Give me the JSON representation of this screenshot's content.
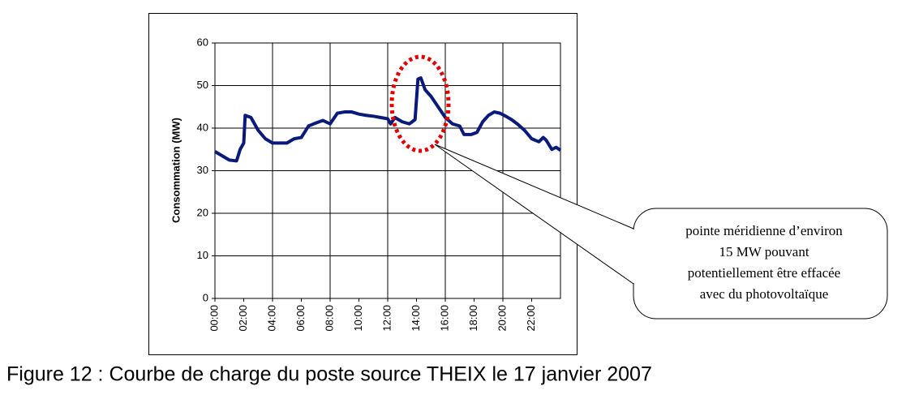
{
  "chart_data": {
    "type": "line",
    "y_label": "Consommation (MW)",
    "x": [
      0,
      0.5,
      1,
      1.5,
      1.75,
      2,
      2.1,
      2.5,
      3,
      3.5,
      4,
      4.5,
      5,
      5.5,
      6,
      6.5,
      7,
      7.5,
      8,
      8.5,
      9,
      9.5,
      10,
      10.5,
      11,
      11.5,
      12,
      12.2,
      12.5,
      13,
      13.5,
      13.9,
      14.1,
      14.3,
      14.6,
      15,
      15.5,
      16,
      16.5,
      17,
      17.3,
      17.8,
      18.2,
      18.6,
      19,
      19.4,
      19.8,
      20.2,
      20.6,
      21,
      21.5,
      22,
      22.5,
      22.8,
      23,
      23.4,
      23.7,
      24
    ],
    "series": [
      {
        "name": "THEIX",
        "color": "#0a1a7a",
        "values": [
          34.5,
          33.5,
          32.5,
          32.3,
          35,
          36.5,
          43,
          42.5,
          39.5,
          37.5,
          36.5,
          36.5,
          36.5,
          37.5,
          37.8,
          40.5,
          41.2,
          41.8,
          41,
          43.5,
          43.8,
          43.8,
          43.3,
          43,
          42.8,
          42.5,
          42.2,
          41,
          42.5,
          41.5,
          41,
          42,
          51.5,
          51.8,
          49,
          47.5,
          45,
          42.5,
          41,
          40.5,
          38.5,
          38.5,
          39,
          41.5,
          43,
          43.8,
          43.5,
          42.8,
          42,
          41,
          39.5,
          37.5,
          36.8,
          37.8,
          37.2,
          35,
          35.5,
          34.8
        ]
      }
    ],
    "xlim": [
      0,
      24
    ],
    "xticks": [
      {
        "value": 0,
        "label": "00:00"
      },
      {
        "value": 2,
        "label": "02:00"
      },
      {
        "value": 4,
        "label": "04:00"
      },
      {
        "value": 6,
        "label": "06:00"
      },
      {
        "value": 8,
        "label": "08:00"
      },
      {
        "value": 10,
        "label": "10:00"
      },
      {
        "value": 12,
        "label": "12:00"
      },
      {
        "value": 14,
        "label": "14:00"
      },
      {
        "value": 16,
        "label": "16:00"
      },
      {
        "value": 18,
        "label": "18:00"
      },
      {
        "value": 20,
        "label": "20:00"
      },
      {
        "value": 22,
        "label": "22:00"
      }
    ],
    "ylim": [
      0,
      60
    ],
    "yticks": [
      0,
      10,
      20,
      30,
      40,
      50,
      60
    ],
    "grid": true,
    "annotation": [
      "pointe méridienne d’environ",
      "15 MW pouvant",
      "potentiellement être effacée",
      "avec du photovoltaïque"
    ],
    "caption": "Figure 12 : Courbe de charge du poste source THEIX le 17 janvier 2007"
  }
}
